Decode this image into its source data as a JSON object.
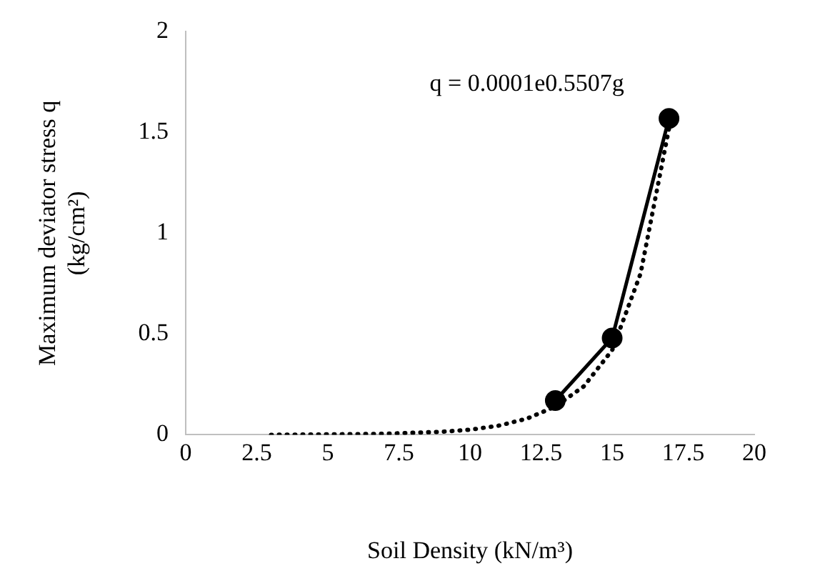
{
  "chart_data": {
    "type": "scatter",
    "xlabel": "Soil Density (kN/m³)",
    "ylabel": "Maximum deviator stress q\n(kg/cm²)",
    "xlim": [
      0,
      20
    ],
    "ylim": [
      0,
      2
    ],
    "xticks": [
      0,
      2.5,
      5,
      7.5,
      10,
      12.5,
      15,
      17.5,
      20
    ],
    "yticks": [
      0,
      0.5,
      1,
      1.5,
      2
    ],
    "grid": false,
    "legend": false,
    "annotations": [
      "q = 0.0001e0.5507g"
    ],
    "series": [
      {
        "type": "line",
        "color": "#000000",
        "marker": "circle",
        "line_style": "solid",
        "x": [
          13,
          15,
          17
        ],
        "values": [
          0.17,
          0.48,
          1.57
        ]
      },
      {
        "type": "line",
        "color": "#000000",
        "marker": "none",
        "line_style": "dotted",
        "x": [
          3,
          5,
          7,
          9,
          10,
          11,
          12,
          13,
          14,
          15,
          16,
          17
        ],
        "values": [
          0.0,
          0.002,
          0.005,
          0.015,
          0.025,
          0.045,
          0.08,
          0.14,
          0.24,
          0.42,
          0.8,
          1.52
        ]
      }
    ]
  }
}
